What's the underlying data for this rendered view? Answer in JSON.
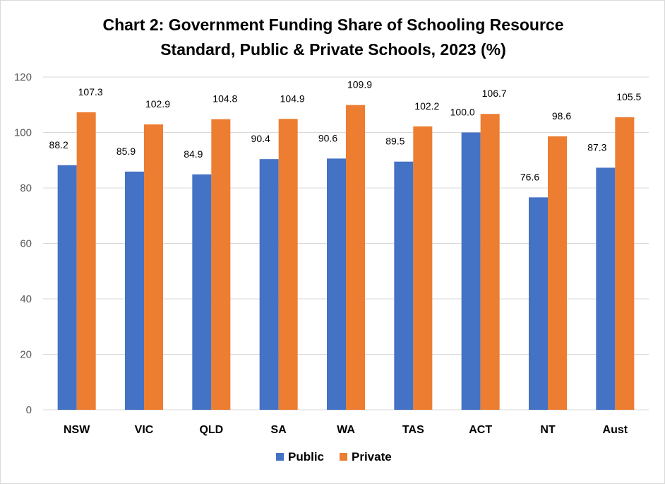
{
  "chart_data": {
    "type": "bar",
    "title": [
      "Chart 2: Government Funding Share of Schooling Resource",
      "Standard, Public & Private Schools, 2023 (%)"
    ],
    "xlabel": "",
    "ylabel": "",
    "categories": [
      "NSW",
      "VIC",
      "QLD",
      "SA",
      "WA",
      "TAS",
      "ACT",
      "NT",
      "Aust"
    ],
    "series": [
      {
        "name": "Public",
        "color": "#4472C4",
        "values": [
          88.2,
          85.9,
          84.9,
          90.4,
          90.6,
          89.5,
          100.0,
          76.6,
          87.3
        ]
      },
      {
        "name": "Private",
        "color": "#ED7D31",
        "values": [
          107.3,
          102.9,
          104.8,
          104.9,
          109.9,
          102.2,
          106.7,
          98.6,
          105.5
        ]
      }
    ],
    "ylim": [
      0,
      120
    ],
    "yticks": [
      0,
      20,
      40,
      60,
      80,
      100,
      120
    ],
    "grid": true,
    "gridline_color": "#d9d9d9",
    "data_labels": true,
    "data_label_decimals": 1,
    "legend_position": "bottom"
  }
}
